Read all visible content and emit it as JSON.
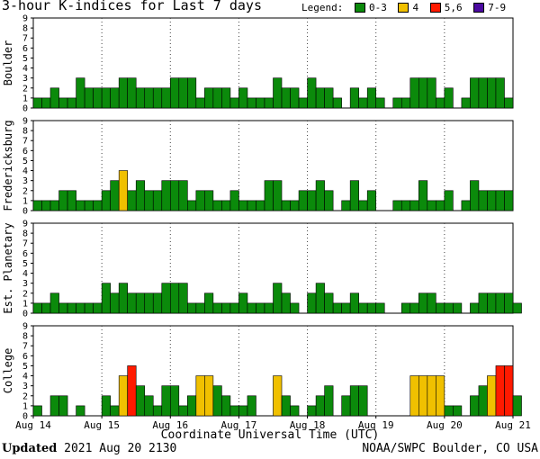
{
  "header": {
    "title": "3-hour K-indices for Last 7 days",
    "legend_label": "Legend:",
    "legend": [
      {
        "label": "0-3",
        "color": "#0b8a0b"
      },
      {
        "label": "4",
        "color": "#f0c000"
      },
      {
        "label": "5,6",
        "color": "#ff1a00"
      },
      {
        "label": "7-9",
        "color": "#4b0aa0"
      }
    ]
  },
  "footer": {
    "updated_label": "Updated",
    "updated_value": "2021 Aug 20 2130",
    "credit": "NOAA/SWPC Boulder, CO USA"
  },
  "chart_data": {
    "type": "bar",
    "title": "3-hour K-indices for Last 7 days",
    "xlabel": "Coordinate Universal Time (UTC)",
    "ylim": [
      0,
      9
    ],
    "yticks": [
      "0",
      "1",
      "2",
      "3",
      "4",
      "5",
      "6",
      "7",
      "8",
      "9"
    ],
    "xticks": [
      "Aug 14",
      "Aug 15",
      "Aug 16",
      "Aug 17",
      "Aug 18",
      "Aug 19",
      "Aug 20",
      "Aug 21"
    ],
    "grid": true,
    "bins_per_day": 8,
    "colors": {
      "low": "#0b8a0b",
      "k4": "#f0c000",
      "k56": "#ff1a00",
      "k79": "#4b0aa0"
    },
    "panels": [
      {
        "name": "Boulder",
        "values": [
          1,
          1,
          2,
          1,
          1,
          3,
          2,
          2,
          2,
          2,
          3,
          3,
          2,
          2,
          2,
          2,
          3,
          3,
          3,
          1,
          2,
          2,
          2,
          1,
          2,
          1,
          1,
          1,
          3,
          2,
          2,
          1,
          3,
          2,
          2,
          1,
          0,
          2,
          1,
          2,
          1,
          0,
          1,
          1,
          3,
          3,
          3,
          1,
          2,
          0,
          1,
          3,
          3,
          3,
          3,
          1,
          0
        ]
      },
      {
        "name": "Fredericksburg",
        "values": [
          1,
          1,
          1,
          2,
          2,
          1,
          1,
          1,
          2,
          3,
          4,
          2,
          3,
          2,
          2,
          3,
          3,
          3,
          1,
          2,
          2,
          1,
          1,
          2,
          1,
          1,
          1,
          3,
          3,
          1,
          1,
          2,
          2,
          3,
          2,
          0,
          1,
          3,
          1,
          2,
          0,
          0,
          1,
          1,
          1,
          3,
          1,
          1,
          2,
          0,
          1,
          3,
          2,
          2,
          2,
          2,
          0
        ]
      },
      {
        "name": "Est. Planetary",
        "values": [
          1,
          1,
          2,
          1,
          1,
          1,
          1,
          1,
          3,
          2,
          3,
          2,
          2,
          2,
          2,
          3,
          3,
          3,
          1,
          1,
          2,
          1,
          1,
          1,
          2,
          1,
          1,
          1,
          3,
          2,
          1,
          0,
          2,
          3,
          2,
          1,
          1,
          2,
          1,
          1,
          1,
          0,
          0,
          1,
          1,
          2,
          2,
          1,
          1,
          1,
          0,
          1,
          2,
          2,
          2,
          2,
          1
        ]
      },
      {
        "name": "College",
        "values": [
          1,
          0,
          2,
          2,
          0,
          1,
          0,
          0,
          2,
          1,
          4,
          5,
          3,
          2,
          1,
          3,
          3,
          1,
          2,
          4,
          4,
          3,
          2,
          1,
          1,
          2,
          0,
          0,
          4,
          2,
          1,
          0,
          1,
          2,
          3,
          0,
          2,
          3,
          3,
          0,
          0,
          0,
          0,
          0,
          4,
          4,
          4,
          4,
          1,
          1,
          0,
          2,
          3,
          4,
          5,
          5,
          2
        ]
      }
    ]
  }
}
